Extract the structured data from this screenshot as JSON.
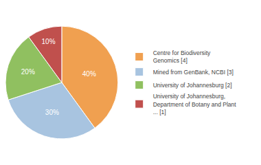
{
  "chart_data": {
    "type": "pie",
    "categories": [
      "Centre for Biodiversity\nGenomics [4]",
      "Mined from GenBank, NCBI [3]",
      "University of Johannesburg [2]",
      "University of Johannesburg,\nDepartment of Botany and Plant\n... [1]"
    ],
    "values": [
      40,
      30,
      20,
      10
    ],
    "value_labels": [
      "40%",
      "30%",
      "20%",
      "10%"
    ],
    "colors": [
      "#f0a050",
      "#a8c4e0",
      "#90c060",
      "#c0504d"
    ],
    "data_labels": true,
    "legend": "right"
  }
}
